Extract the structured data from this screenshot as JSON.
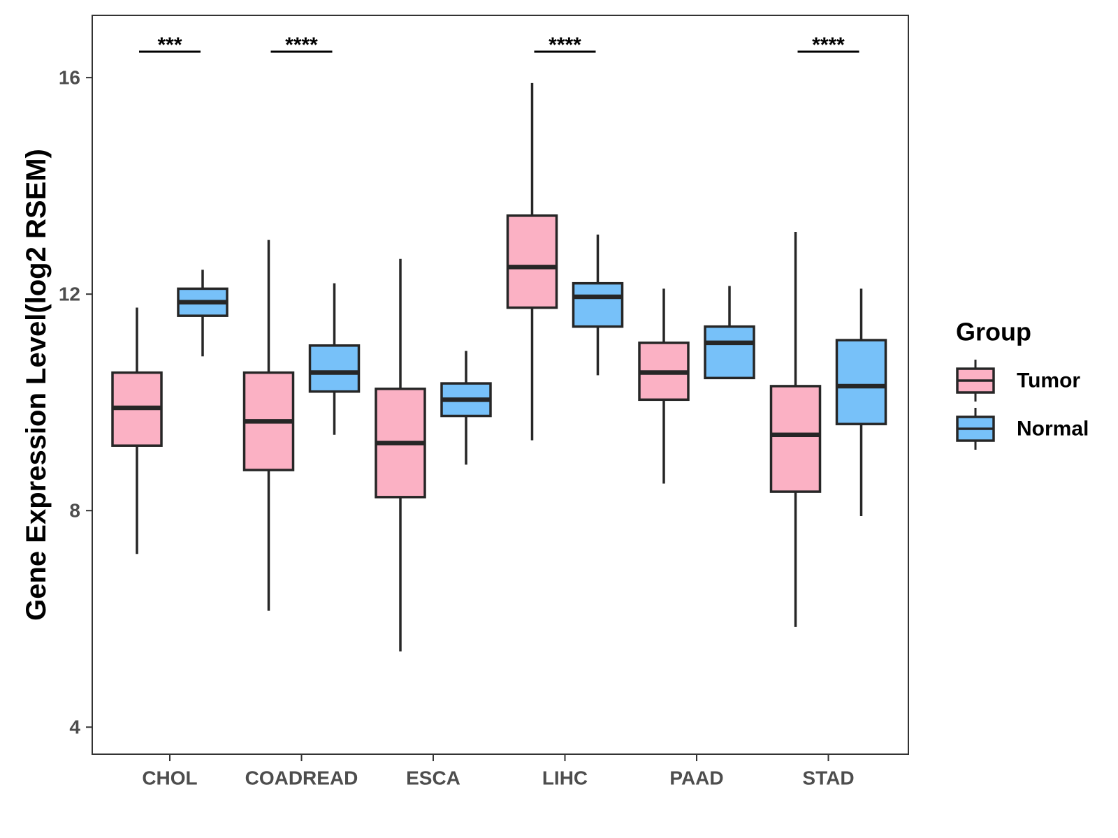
{
  "chart_data": {
    "type": "boxplot",
    "title": "",
    "xlabel": "",
    "ylabel": "Gene Expression Level(log2 RSEM)",
    "ylim": [
      3.5,
      17.15
    ],
    "yticks": [
      4,
      8,
      12,
      16
    ],
    "grid": false,
    "categories": [
      "CHOL",
      "COADREAD",
      "ESCA",
      "LIHC",
      "PAAD",
      "STAD"
    ],
    "legend": {
      "title": "Group",
      "position": "right",
      "entries": [
        "Tumor",
        "Normal"
      ]
    },
    "series": [
      {
        "name": "Tumor",
        "color": "#FBB1C4",
        "boxes": [
          {
            "category": "CHOL",
            "whisker_low": 7.2,
            "q1": 9.2,
            "median": 9.9,
            "q3": 10.55,
            "whisker_high": 11.75
          },
          {
            "category": "COADREAD",
            "whisker_low": 6.15,
            "q1": 8.75,
            "median": 9.65,
            "q3": 10.55,
            "whisker_high": 13.0
          },
          {
            "category": "ESCA",
            "whisker_low": 5.4,
            "q1": 8.25,
            "median": 9.25,
            "q3": 10.25,
            "whisker_high": 12.65
          },
          {
            "category": "LIHC",
            "whisker_low": 9.3,
            "q1": 11.75,
            "median": 12.5,
            "q3": 13.45,
            "whisker_high": 15.9
          },
          {
            "category": "PAAD",
            "whisker_low": 8.5,
            "q1": 10.05,
            "median": 10.55,
            "q3": 11.1,
            "whisker_high": 12.1
          },
          {
            "category": "STAD",
            "whisker_low": 5.85,
            "q1": 8.35,
            "median": 9.4,
            "q3": 10.3,
            "whisker_high": 13.15
          }
        ]
      },
      {
        "name": "Normal",
        "color": "#77C1F9",
        "boxes": [
          {
            "category": "CHOL",
            "whisker_low": 10.85,
            "q1": 11.6,
            "median": 11.85,
            "q3": 12.1,
            "whisker_high": 12.45
          },
          {
            "category": "COADREAD",
            "whisker_low": 9.4,
            "q1": 10.2,
            "median": 10.55,
            "q3": 11.05,
            "whisker_high": 12.2
          },
          {
            "category": "ESCA",
            "whisker_low": 8.85,
            "q1": 9.75,
            "median": 10.05,
            "q3": 10.35,
            "whisker_high": 10.95
          },
          {
            "category": "LIHC",
            "whisker_low": 10.5,
            "q1": 11.4,
            "median": 11.95,
            "q3": 12.2,
            "whisker_high": 13.1
          },
          {
            "category": "PAAD",
            "whisker_low": 10.45,
            "q1": 10.45,
            "median": 11.1,
            "q3": 11.4,
            "whisker_high": 12.15
          },
          {
            "category": "STAD",
            "whisker_low": 7.9,
            "q1": 9.6,
            "median": 10.3,
            "q3": 11.15,
            "whisker_high": 12.1
          }
        ]
      }
    ],
    "annotations": [
      {
        "category": "CHOL",
        "label": "***"
      },
      {
        "category": "COADREAD",
        "label": "****"
      },
      {
        "category": "LIHC",
        "label": "****"
      },
      {
        "category": "STAD",
        "label": "****"
      }
    ]
  }
}
